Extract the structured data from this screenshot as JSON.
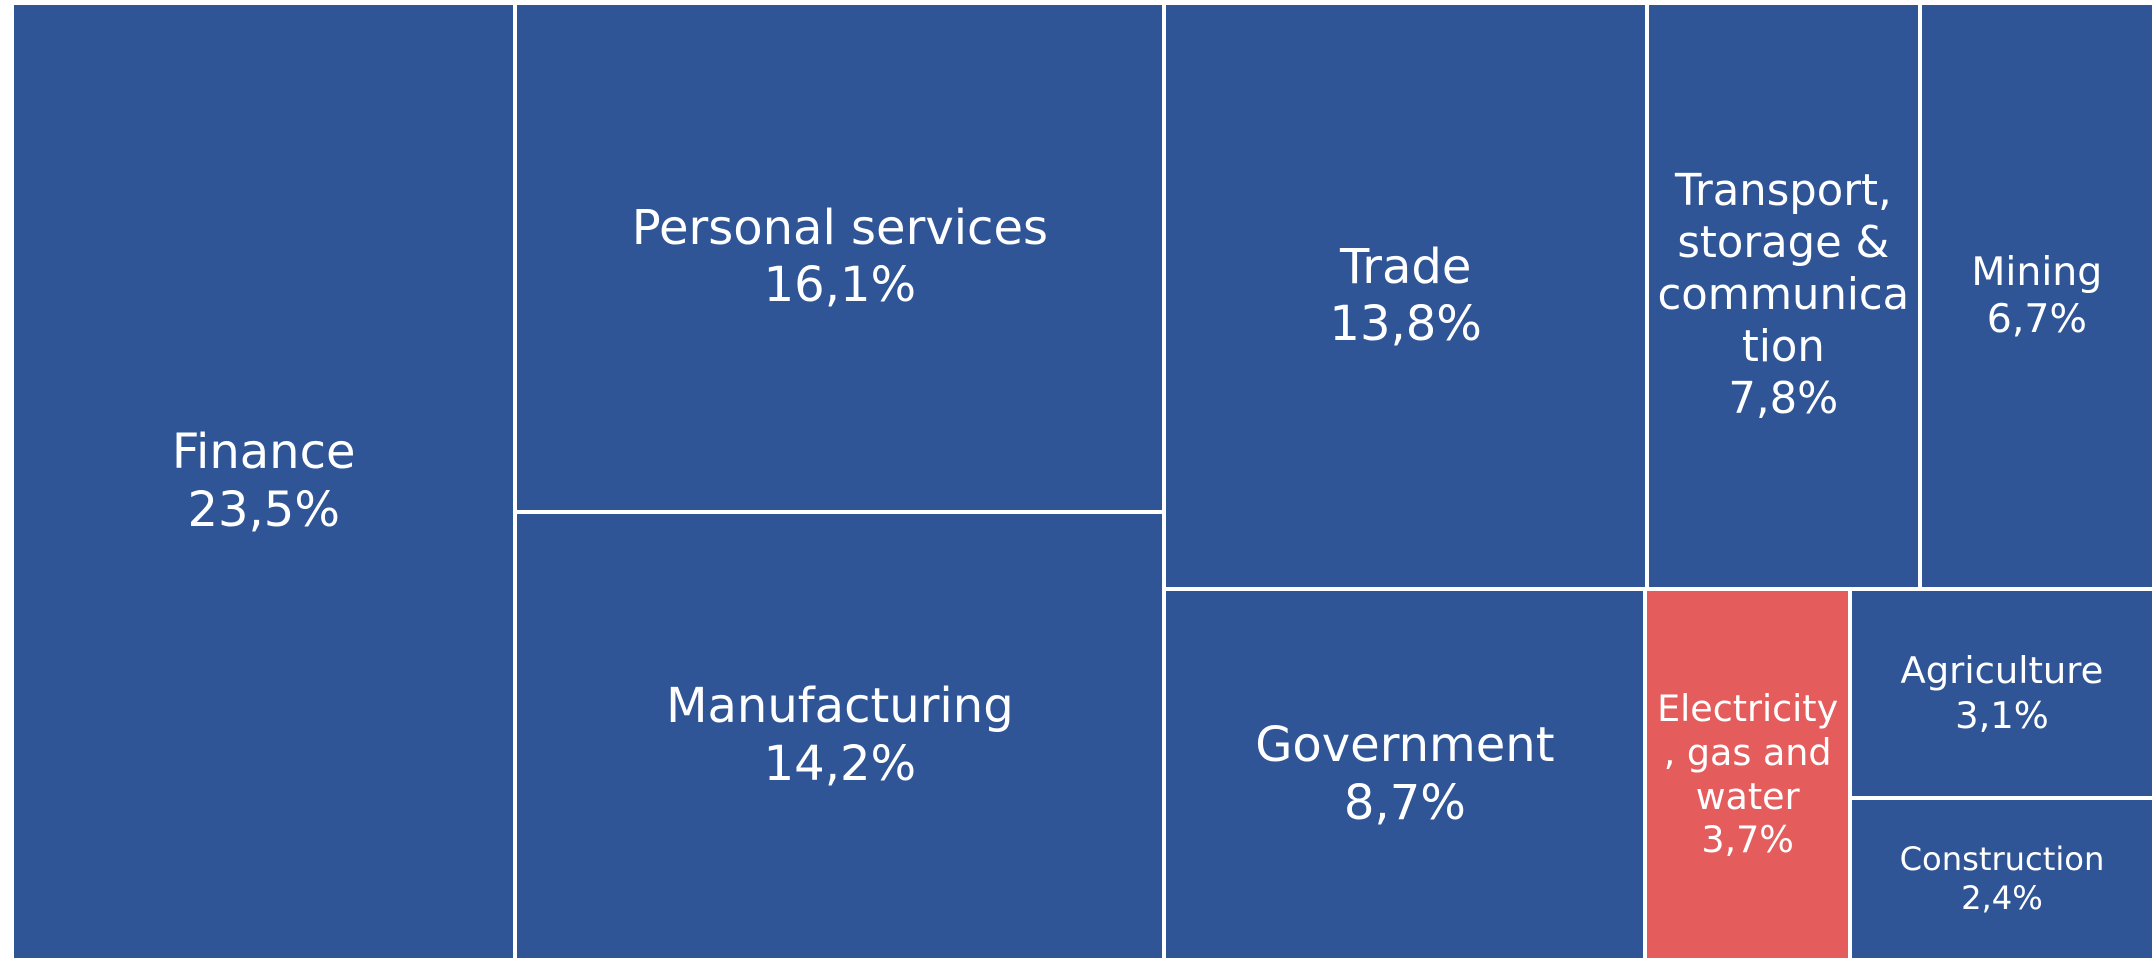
{
  "chart_data": {
    "type": "treemap",
    "categories": [
      "Finance",
      "Personal services",
      "Manufacturing",
      "Trade",
      "Government",
      "Transport, storage & communication",
      "Mining",
      "Electricity, gas and water",
      "Agriculture",
      "Construction"
    ],
    "values": [
      23.5,
      16.1,
      14.2,
      13.8,
      8.7,
      7.8,
      6.7,
      3.7,
      3.1,
      2.4
    ],
    "value_labels": [
      "23,5%",
      "16,1%",
      "14,2%",
      "13,8%",
      "8,7%",
      "7,8%",
      "6,7%",
      "3,7%",
      "3,1%",
      "2,4%"
    ],
    "colors": [
      "#2f5597",
      "#2f5597",
      "#2f5597",
      "#2f5597",
      "#2f5597",
      "#2f5597",
      "#2f5597",
      "#e45c5c",
      "#2f5597",
      "#2f5597"
    ]
  }
}
